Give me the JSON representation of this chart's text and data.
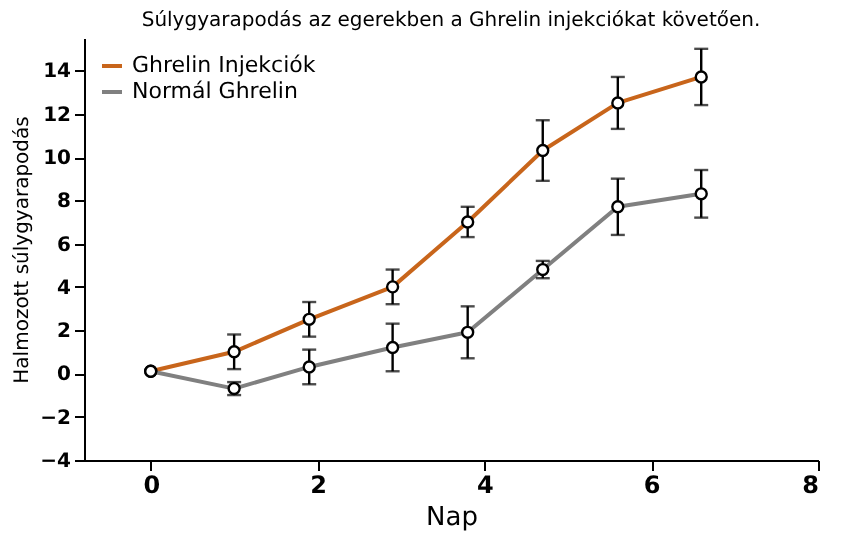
{
  "chart_data": {
    "type": "line",
    "title": "Súlygyarapodás az egerekben a Ghrelin injekciókat követően.",
    "xlabel": "Nap",
    "ylabel": "Halmozott súlygyarapodás",
    "x": [
      0,
      1,
      1.9,
      2.9,
      3.8,
      4.7,
      5.6,
      6.6
    ],
    "series": [
      {
        "name": "Ghrelin Injekciók",
        "color": "#c8651b",
        "values": [
          0.1,
          1,
          2.5,
          4,
          7,
          10.3,
          12.5,
          13.7
        ],
        "errors": [
          null,
          0.8,
          0.8,
          0.8,
          0.7,
          1.4,
          1.2,
          1.3
        ]
      },
      {
        "name": "Normál Ghrelin",
        "color": "#808080",
        "values": [
          0.1,
          -0.7,
          0.3,
          1.2,
          1.9,
          4.8,
          7.7,
          8.3
        ],
        "errors": [
          null,
          0.3,
          0.8,
          1.1,
          1.2,
          0.4,
          1.3,
          1.1
        ]
      }
    ],
    "xlim": [
      -0.8,
      8
    ],
    "xticks": [
      0,
      2,
      4,
      6,
      8
    ],
    "ylim": [
      -4,
      15.5
    ],
    "yticks": [
      -4,
      -2,
      0,
      2,
      4,
      6,
      8,
      10,
      12,
      14
    ],
    "legend": "top left",
    "marker": "circle"
  }
}
